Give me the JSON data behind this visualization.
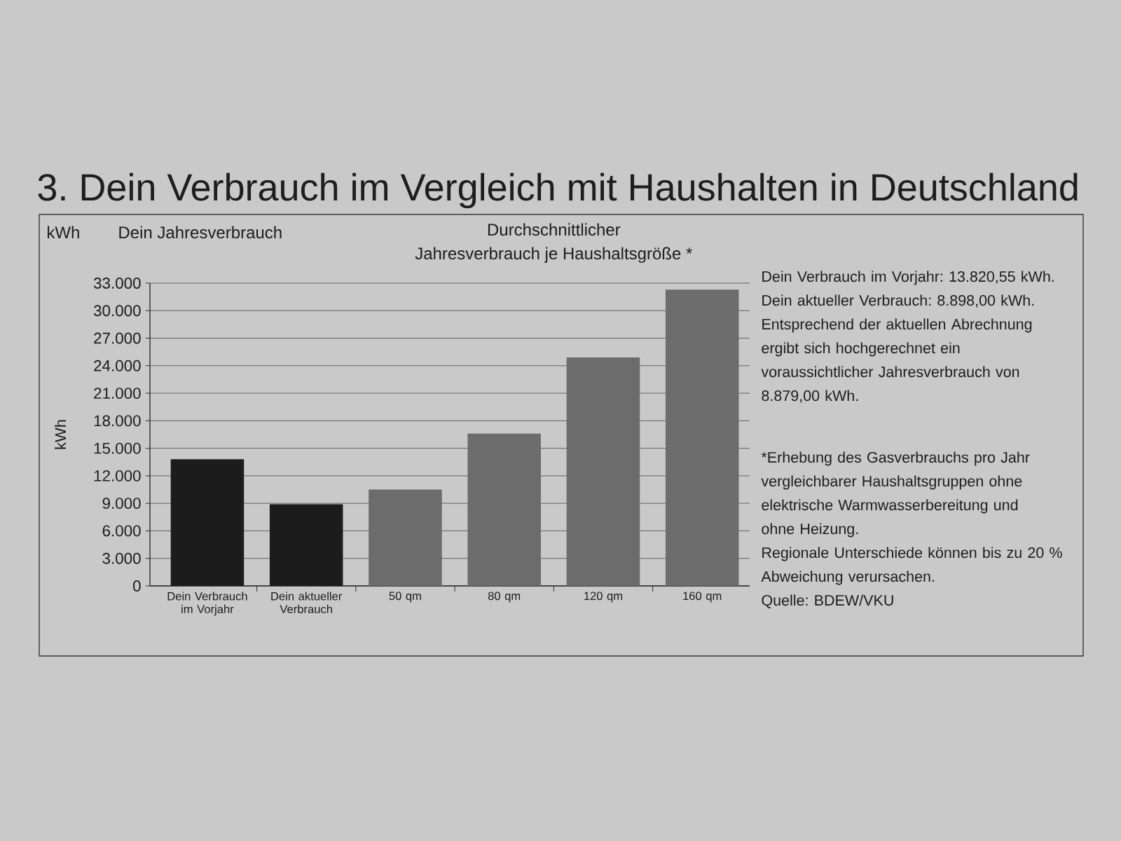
{
  "chart_data": {
    "type": "bar",
    "title": "3. Dein Verbrauch im Vergleich mit Haushalten in Deutschland",
    "ylabel": "kWh",
    "categories": [
      "Dein Verbrauch im Vorjahr",
      "Dein aktueller Verbrauch",
      "50 qm",
      "80 qm",
      "120 qm",
      "160 qm"
    ],
    "values": [
      13800,
      8900,
      10500,
      16600,
      24900,
      32300
    ],
    "colors": [
      "#1c1c1c",
      "#1c1c1c",
      "#6c6c6c",
      "#6c6c6c",
      "#6c6c6c",
      "#6c6c6c"
    ],
    "ylim": [
      0,
      33000
    ],
    "yticks": [
      0,
      {
        "value": 3000,
        "label": "3.000"
      },
      {
        "value": 6000,
        "label": "6.000"
      },
      {
        "value": 9000,
        "label": "9.000"
      },
      {
        "value": 12000,
        "label": "12.000"
      },
      {
        "value": 15000,
        "label": "15.000"
      },
      {
        "value": 18000,
        "label": "18.000"
      },
      {
        "value": 21000,
        "label": "21.000"
      },
      {
        "value": 24000,
        "label": "24.000"
      },
      {
        "value": 27000,
        "label": "27.000"
      },
      {
        "value": 30000,
        "label": "30.000"
      },
      {
        "value": 33000,
        "label": "33.000"
      }
    ],
    "grid": "y",
    "annotations": [
      "kWh",
      "Dein Jahresverbrauch",
      "Durchschnittlicher",
      "Jahresverbrauch je Haushaltsgröße *",
      "Dein Verbrauch im Vorjahr: 13.820,55 kWh.",
      "Dein aktueller Verbrauch: 8.898,00 kWh.",
      "Entsprechend der aktuellen Abrechnung ergibt sich hochgerechnet ein voraussichtlicher Jahresverbrauch von 8.879,00 kWh.",
      "*Erhebung des Gasverbrauchs pro Jahr vergleichbarer Haushaltsgruppen ohne elektrische Warmwasserbereitung und ohne Heizung.",
      "Regionale Unterschiede können bis zu 20 % Abweichung verursachen.",
      "Quelle: BDEW/VKU"
    ]
  }
}
